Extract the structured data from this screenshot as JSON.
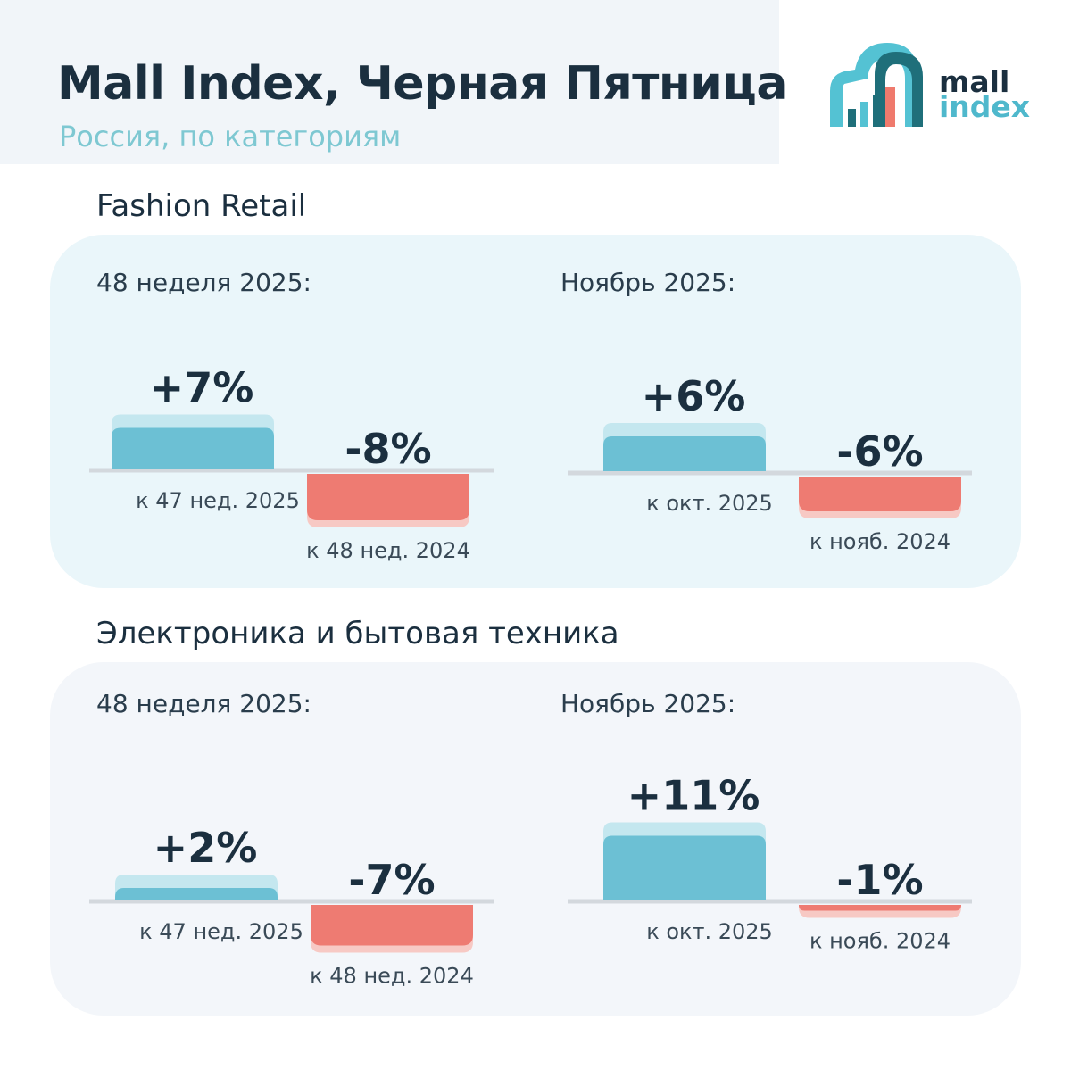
{
  "header": {
    "title": "Mall Index, Черная Пятница",
    "subtitle": "Россия, по категориям"
  },
  "logo": {
    "line1": "mall",
    "line2": "index",
    "icon": "house-bars-icon",
    "colors": {
      "dark": "#1f6f7a",
      "light": "#54c2d3",
      "accent": "#ef7a6d"
    }
  },
  "colors": {
    "positive": "#6cc0d4",
    "positive_light": "#c4e7ef",
    "negative": "#ee7b72",
    "negative_light": "#f7c9c4",
    "axis": "#d3d8dd"
  },
  "chart_data": [
    {
      "type": "bar",
      "title": "Fashion Retail",
      "groups": [
        {
          "name": "48 неделя 2025:",
          "categories": [
            "к 47 нед. 2025",
            "к 48 нед. 2024"
          ],
          "values": [
            7,
            -8
          ],
          "labels": [
            "+7%",
            "-8%"
          ]
        },
        {
          "name": "Ноябрь 2025:",
          "categories": [
            "к окт. 2025",
            "к нояб. 2024"
          ],
          "values": [
            6,
            -6
          ],
          "labels": [
            "+6%",
            "-6%"
          ]
        }
      ]
    },
    {
      "type": "bar",
      "title": "Электроника и бытовая техника",
      "groups": [
        {
          "name": "48 неделя 2025:",
          "categories": [
            "к 47 нед. 2025",
            "к 48 нед. 2024"
          ],
          "values": [
            2,
            -7
          ],
          "labels": [
            "+2%",
            "-7%"
          ]
        },
        {
          "name": "Ноябрь 2025:",
          "categories": [
            "к окт. 2025",
            "к нояб. 2024"
          ],
          "values": [
            11,
            -1
          ],
          "labels": [
            "+11%",
            "-1%"
          ]
        }
      ]
    }
  ]
}
